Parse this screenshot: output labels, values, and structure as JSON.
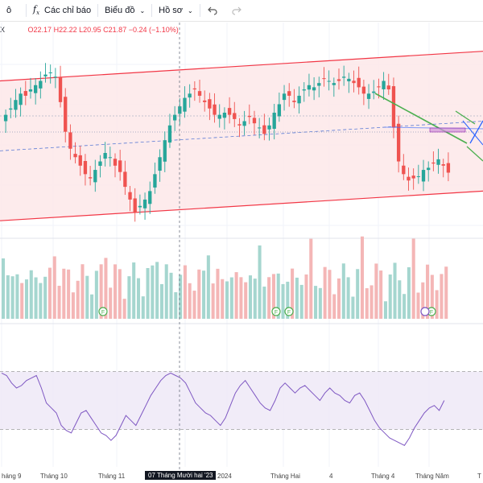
{
  "toolbar": {
    "partial_left": "ô",
    "indicators_icon": "function-icon",
    "indicators_label": "Các chỉ báo",
    "chart_type_label": "Biểu đồ",
    "profile_label": "Hồ sơ",
    "undo_icon": "undo-icon",
    "redo_icon": "redo-icon"
  },
  "legend": {
    "symbol_partial": "X",
    "open": "O22.17",
    "high": "H22.22",
    "low": "L20.95",
    "close": "C21.87",
    "change": "−0.24 (−1.10%)"
  },
  "x_axis": {
    "labels": [
      "háng 9",
      "Tháng 10",
      "Tháng 11",
      "07 Tháng Mười hai '23",
      "2024",
      "Tháng Hai",
      "4",
      "Tháng 4",
      "Tháng Năm",
      "T"
    ]
  },
  "colors": {
    "up": "#26a69a",
    "down": "#ef5350",
    "channel": "#f23645",
    "channel_fill": "#fde7e9",
    "rsi_line": "#7e57c2",
    "rsi_band": "#ede7f6",
    "trend_green": "#4caf50",
    "trend_blue": "#2962ff"
  },
  "chart_data": {
    "type": "candlestick",
    "price": {
      "last_bar": {
        "open": 22.17,
        "high": 22.22,
        "low": 20.95,
        "close": 21.87,
        "change": -0.24,
        "change_pct": -1.1
      },
      "closes": [
        24.6,
        24.9,
        25.3,
        25.6,
        25.5,
        25.8,
        26.0,
        26.2,
        26.5,
        26.6,
        26.4,
        25.2,
        23.8,
        23.0,
        22.6,
        22.2,
        21.8,
        21.6,
        22.0,
        22.4,
        22.8,
        22.6,
        22.2,
        21.9,
        21.2,
        20.6,
        20.0,
        20.3,
        20.6,
        21.0,
        21.8,
        22.6,
        23.4,
        24.1,
        24.6,
        25.0,
        25.4,
        25.6,
        25.8,
        25.5,
        25.2,
        24.9,
        24.6,
        24.6,
        24.7,
        24.6,
        24.4,
        24.1,
        24.3,
        24.5,
        24.2,
        24.0,
        23.7,
        24.1,
        24.7,
        25.1,
        25.6,
        25.5,
        25.2,
        25.5,
        25.8,
        26.0,
        25.9,
        26.1,
        26.3,
        26.2,
        26.1,
        26.2,
        26.4,
        26.3,
        26.1,
        25.9,
        25.6,
        25.6,
        25.7,
        25.9,
        26.2,
        25.8,
        24.0,
        22.4,
        21.8,
        21.5,
        21.6,
        21.7,
        22.0,
        22.1,
        22.3,
        22.5,
        22.2,
        21.87
      ],
      "candle_colors": "mixed up/down"
    },
    "volume": {
      "series_name": "",
      "relative": true
    },
    "rsi": {
      "values": [
        72,
        70,
        64,
        60,
        62,
        66,
        68,
        70,
        60,
        48,
        44,
        40,
        30,
        26,
        24,
        32,
        40,
        42,
        36,
        30,
        24,
        22,
        18,
        22,
        30,
        38,
        34,
        30,
        38,
        46,
        54,
        60,
        66,
        70,
        72,
        70,
        68,
        64,
        56,
        48,
        44,
        40,
        38,
        34,
        30,
        36,
        46,
        56,
        62,
        66,
        60,
        54,
        48,
        44,
        42,
        50,
        60,
        64,
        60,
        56,
        60,
        62,
        58,
        54,
        50,
        56,
        60,
        56,
        54,
        50,
        48,
        54,
        56,
        50,
        42,
        34,
        28,
        24,
        20,
        18,
        16,
        14,
        20,
        28,
        34,
        40,
        44,
        46,
        42,
        50
      ],
      "band": [
        30,
        70
      ]
    },
    "channel": {
      "upper_start": 26.2,
      "upper_end": 27.6,
      "lower_start": 19.6,
      "lower_end": 21.0
    },
    "axis_range": {
      "price": [
        19.0,
        28.5
      ]
    }
  }
}
